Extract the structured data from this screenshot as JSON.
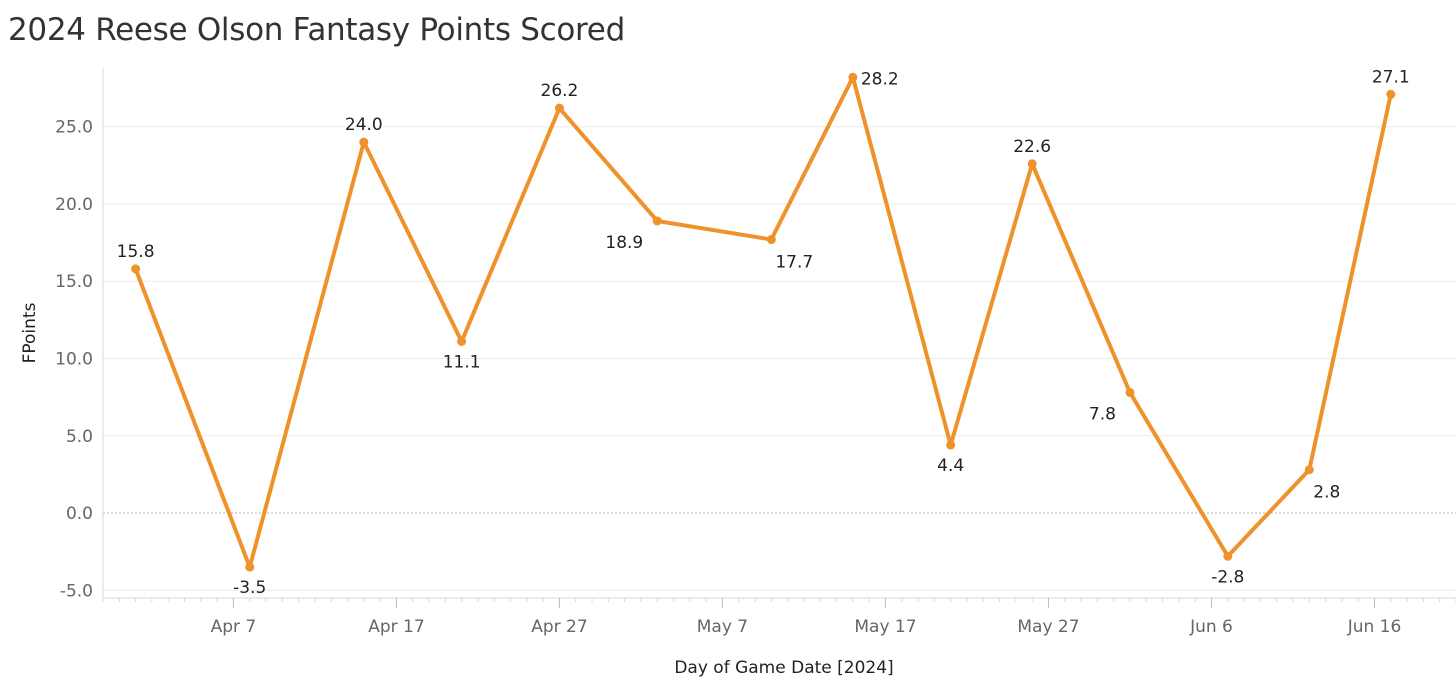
{
  "chart_data": {
    "type": "line",
    "title": "2024 Reese Olson Fantasy Points Scored",
    "xlabel": "Day of Game Date [2024]",
    "ylabel": "FPoints",
    "ylim": [
      -5.5,
      28.8
    ],
    "yticks": [
      -5.0,
      0.0,
      5.0,
      10.0,
      15.0,
      20.0,
      25.0
    ],
    "xlim": [
      "2024-03-30",
      "2024-06-21"
    ],
    "xticks": [
      {
        "date": "2024-04-07",
        "label": "Apr 7"
      },
      {
        "date": "2024-04-17",
        "label": "Apr 17"
      },
      {
        "date": "2024-04-27",
        "label": "Apr 27"
      },
      {
        "date": "2024-05-07",
        "label": "May 7"
      },
      {
        "date": "2024-05-17",
        "label": "May 17"
      },
      {
        "date": "2024-05-27",
        "label": "May 27"
      },
      {
        "date": "2024-06-06",
        "label": "Jun 6"
      },
      {
        "date": "2024-06-16",
        "label": "Jun 16"
      }
    ],
    "grid": true,
    "zero_line": true,
    "series": [
      {
        "color": "#f0922b",
        "points": [
          {
            "x": "2024-04-01",
            "y": 15.8,
            "label": "15.8",
            "pos": "above"
          },
          {
            "x": "2024-04-08",
            "y": -3.5,
            "label": "-3.5",
            "pos": "below"
          },
          {
            "x": "2024-04-15",
            "y": 24.0,
            "label": "24.0",
            "pos": "above"
          },
          {
            "x": "2024-04-21",
            "y": 11.1,
            "label": "11.1",
            "pos": "below"
          },
          {
            "x": "2024-04-27",
            "y": 26.2,
            "label": "26.2",
            "pos": "above"
          },
          {
            "x": "2024-05-03",
            "y": 18.9,
            "label": "18.9",
            "pos": "below-left"
          },
          {
            "x": "2024-05-10",
            "y": 17.7,
            "label": "17.7",
            "pos": "below-right"
          },
          {
            "x": "2024-05-15",
            "y": 28.2,
            "label": "28.2",
            "pos": "right"
          },
          {
            "x": "2024-05-21",
            "y": 4.4,
            "label": "4.4",
            "pos": "below"
          },
          {
            "x": "2024-05-26",
            "y": 22.6,
            "label": "22.6",
            "pos": "above"
          },
          {
            "x": "2024-06-01",
            "y": 7.8,
            "label": "7.8",
            "pos": "below-left"
          },
          {
            "x": "2024-06-07",
            "y": -2.8,
            "label": "-2.8",
            "pos": "below"
          },
          {
            "x": "2024-06-12",
            "y": 2.8,
            "label": "2.8",
            "pos": "below-right"
          },
          {
            "x": "2024-06-17",
            "y": 27.1,
            "label": "27.1",
            "pos": "above"
          }
        ]
      }
    ]
  }
}
